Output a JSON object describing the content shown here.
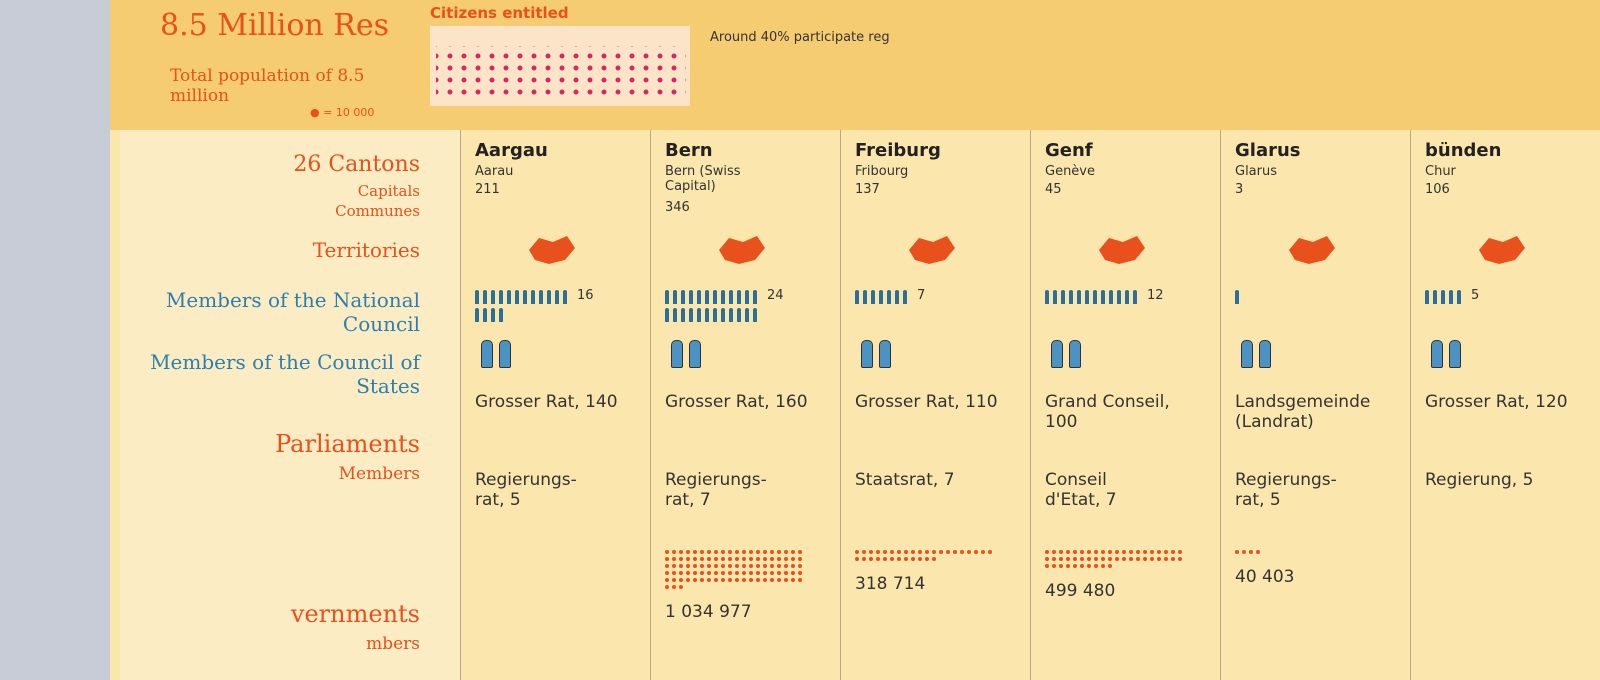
{
  "header": {
    "title": "8.5 Million Res",
    "citizens": "Citizens entitled",
    "participation": "Around 40% participate reg",
    "population_text": "Total population of 8.5 million",
    "dot_legend": "= 10 000"
  },
  "labels": {
    "cantons": "26 Cantons",
    "capitals": "Capitals",
    "communes": "Communes",
    "territories": "Territories",
    "national_council": "Members of the National Council",
    "council_of_states": "Members of the Council of States",
    "parliaments": "Parliaments",
    "parliaments_members": "Members",
    "governments": "vernments",
    "governments_members": "mbers"
  },
  "cantons": [
    {
      "name": "Aargau",
      "capital": "Aarau",
      "communes": 211,
      "national_council": 16,
      "council_of_states": 2,
      "parliament": "Grosser Rat, 140",
      "government": "Regierungs-rat, 5"
    },
    {
      "name": "Bern",
      "capital": "Bern (Swiss Capital)",
      "communes": 346,
      "national_council": 24,
      "council_of_states": 2,
      "parliament": "Grosser Rat, 160",
      "government": "Regierungs-rat, 7",
      "population": 1034977,
      "population_label": "1 034 977"
    },
    {
      "name": "Freiburg",
      "capital": "Fribourg",
      "communes": 137,
      "national_council": 7,
      "council_of_states": 2,
      "parliament": "Grosser Rat, 110",
      "government": "Staatsrat, 7",
      "population": 318714,
      "population_label": "318 714"
    },
    {
      "name": "Genf",
      "capital": "Genève",
      "communes": 45,
      "national_council": 12,
      "council_of_states": 2,
      "parliament": "Grand Conseil, 100",
      "government": "Conseil d'Etat, 7",
      "population": 499480,
      "population_label": "499 480"
    },
    {
      "name": "Glarus",
      "capital": "Glarus",
      "communes": 3,
      "national_council": 1,
      "council_of_states": 2,
      "parliament": "Landsgemeinde (Landrat)",
      "government": "Regierungs-rat, 5",
      "population": 40403,
      "population_label": "40 403"
    },
    {
      "name": "bünden",
      "capital": "Chur",
      "communes": 106,
      "national_council": 5,
      "council_of_states": 2,
      "parliament": "Grosser Rat, 120",
      "government": "Regierung, 5"
    }
  ]
}
